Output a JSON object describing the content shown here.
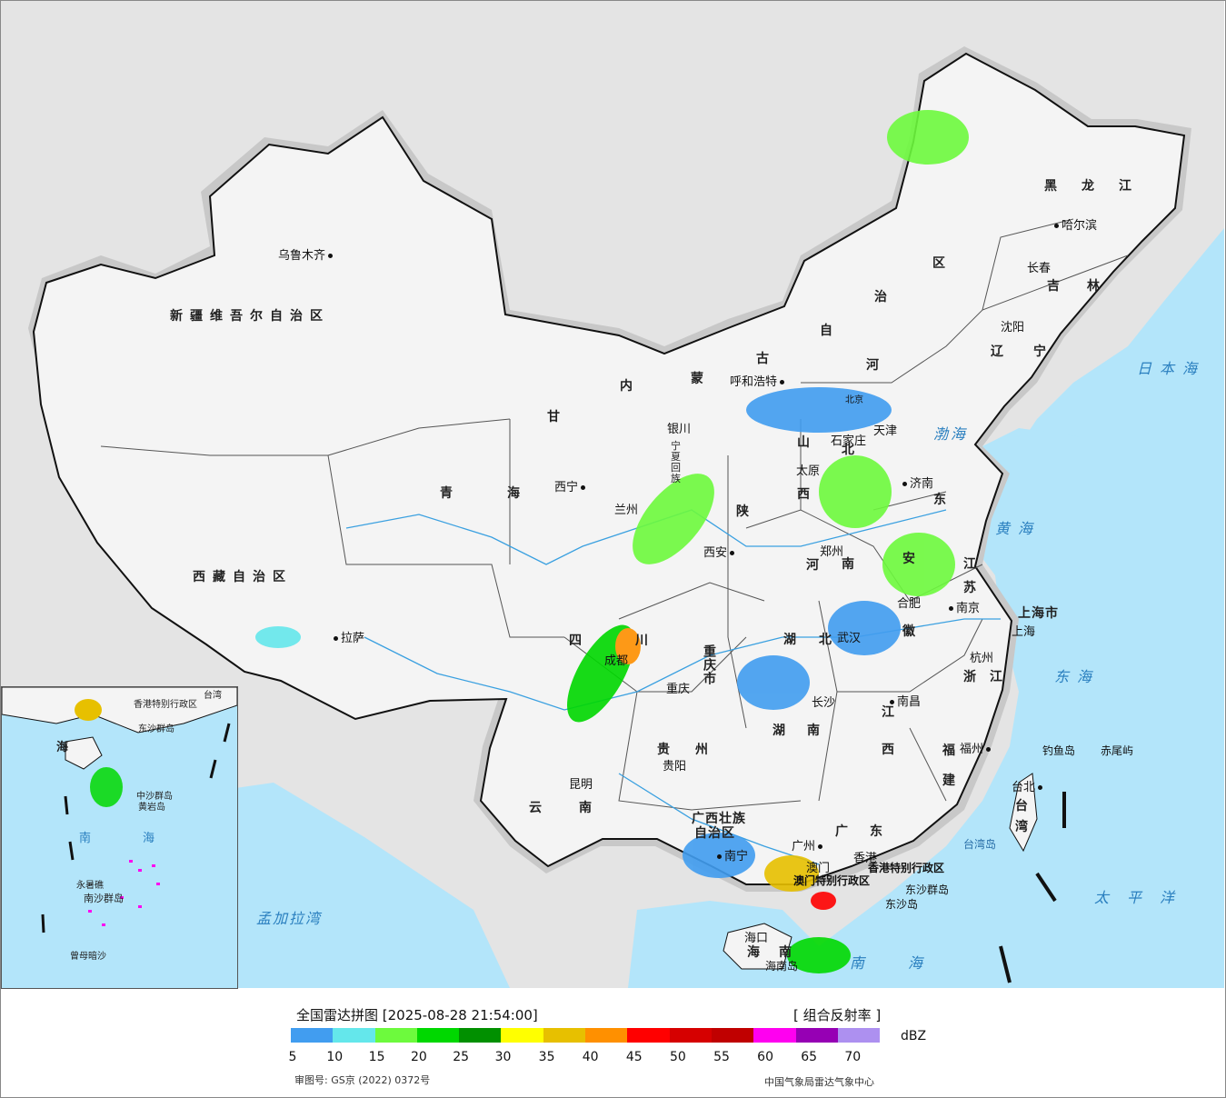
{
  "map": {
    "colors": {
      "sea": "#b3e5fa",
      "land_outside": "#e4e4e4",
      "china": "#f4f4f4",
      "border": "#111111",
      "river": "#3aa0e0",
      "halo": "#c8c8c8"
    },
    "regions": [
      "新疆维吾尔自治区",
      "西藏自治区",
      "青海",
      "甘",
      "内",
      "蒙",
      "古",
      "自",
      "治",
      "区",
      "黑",
      "龙",
      "江",
      "吉",
      "林",
      "辽",
      "宁",
      "河",
      "北",
      "山",
      "西",
      "陕",
      "东",
      "江",
      "苏",
      "安",
      "徽",
      "浙",
      "江",
      "河",
      "南",
      "湖",
      "北",
      "湖",
      "南",
      "江",
      "西",
      "福",
      "建",
      "四",
      "川",
      "重庆市",
      "贵",
      "州",
      "云",
      "南",
      "广西壮族",
      "自治区",
      "广",
      "东",
      "海",
      "南",
      "台",
      "湾",
      "上海市",
      "宁",
      "夏",
      "回",
      "族"
    ],
    "cities": [
      "乌鲁木齐",
      "拉萨",
      "西宁",
      "兰州",
      "银川",
      "呼和浩特",
      "北京",
      "天津",
      "石家庄",
      "太原",
      "济南",
      "郑州",
      "西安",
      "合肥",
      "南京",
      "上海",
      "杭州",
      "武汉",
      "长沙",
      "南昌",
      "福州",
      "台北",
      "重庆",
      "成都",
      "贵阳",
      "昆明",
      "南宁",
      "广州",
      "香港",
      "澳门",
      "海口",
      "哈尔滨",
      "长春",
      "沈阳"
    ],
    "special_regions": [
      "香港特别行政区",
      "澳门特别行政区"
    ],
    "islands": [
      "钓鱼岛",
      "赤尾屿",
      "台湾岛",
      "东沙群岛",
      "东沙岛",
      "海南岛"
    ],
    "seas": [
      "日本海",
      "黄海",
      "东海",
      "太平洋",
      "南海",
      "渤海",
      "孟加拉湾"
    ],
    "inset": {
      "labels": [
        "海",
        "南",
        "海",
        "中沙群岛",
        "黄岩岛",
        "永暑礁",
        "南沙群岛",
        "曾母暗沙",
        "东沙群岛",
        "香港特别行政区",
        "台湾"
      ]
    }
  },
  "legend": {
    "title": "全国雷达拼图 [2025-08-28 21:54:00]",
    "product": "[ 组合反射率 ]",
    "unit": "dBZ",
    "ticks": [
      "5",
      "10",
      "15",
      "20",
      "25",
      "30",
      "35",
      "40",
      "45",
      "50",
      "55",
      "60",
      "65",
      "70"
    ],
    "colors": [
      "#419df0",
      "#64e7eb",
      "#6dfa3d",
      "#00d800",
      "#019000",
      "#ffff00",
      "#e7c000",
      "#ff9000",
      "#ff0000",
      "#d60000",
      "#c00000",
      "#ff00f0",
      "#9600b4",
      "#ad90f0"
    ],
    "approval": "审图号: GS京 (2022) 0372号",
    "organization": "中国气象局雷达气象中心"
  }
}
